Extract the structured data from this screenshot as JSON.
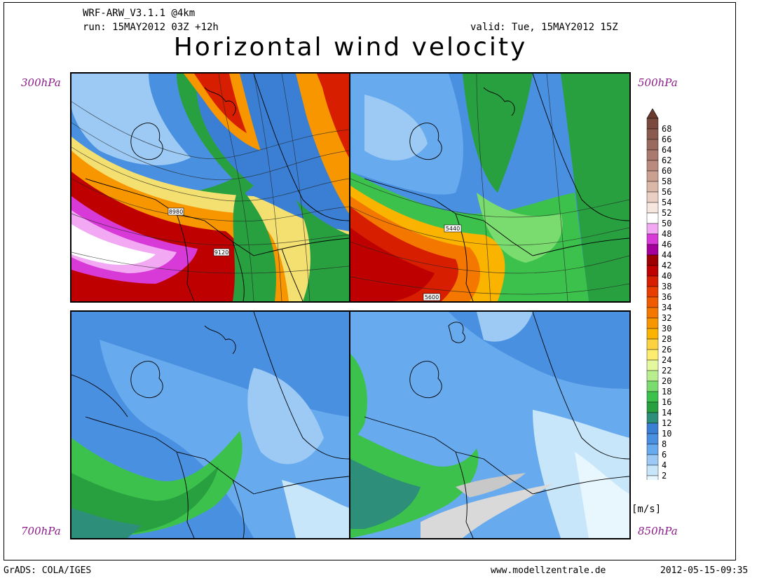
{
  "header": {
    "model": "WRF-ARW_V3.1.1 @4km",
    "run": "run: 15MAY2012 03Z +12h",
    "valid": "valid: Tue, 15MAY2012 15Z",
    "title": "Horizontal wind velocity"
  },
  "panels": [
    {
      "level": "300hPa",
      "isolines": [
        "8980",
        "9120"
      ]
    },
    {
      "level": "500hPa",
      "isolines": [
        "5440",
        "5600"
      ]
    },
    {
      "level": "700hPa",
      "isolines": []
    },
    {
      "level": "850hPa",
      "isolines": []
    }
  ],
  "colorbar": {
    "unit": "[m/s]",
    "ticks": [
      "68",
      "66",
      "64",
      "62",
      "60",
      "58",
      "56",
      "54",
      "52",
      "50",
      "48",
      "46",
      "44",
      "42",
      "40",
      "38",
      "36",
      "34",
      "32",
      "30",
      "28",
      "26",
      "24",
      "22",
      "20",
      "18",
      "16",
      "14",
      "12",
      "10",
      "8",
      "6",
      "4",
      "2"
    ],
    "colors": {
      "top_arrow": "#6b3a2e",
      "bins": [
        "#7a4a3e",
        "#8a5a4e",
        "#9a6a5e",
        "#aa7a6e",
        "#ba8a7e",
        "#caa090",
        "#dab8a8",
        "#ead0c4",
        "#f6e6de",
        "#ffffff",
        "#f2a8f2",
        "#d83ad8",
        "#a4009c",
        "#9c0000",
        "#be0000",
        "#d81e00",
        "#e83c00",
        "#f05a00",
        "#f47800",
        "#f89600",
        "#fab400",
        "#fcd240",
        "#fcec70",
        "#e4f8a0",
        "#b8ee90",
        "#7adc6e",
        "#3cc24c",
        "#28a040",
        "#2d8f7a",
        "#3a7fd4",
        "#4a90e0",
        "#68aaee",
        "#9ccaf4",
        "#c8e6fa",
        "#e8f6fe"
      ],
      "bottom_arrow": "#f4fbff"
    }
  },
  "footer": {
    "left": "GrADS: COLA/IGES",
    "center": "www.modellzentrale.de",
    "right": "2012-05-15-09:35"
  }
}
